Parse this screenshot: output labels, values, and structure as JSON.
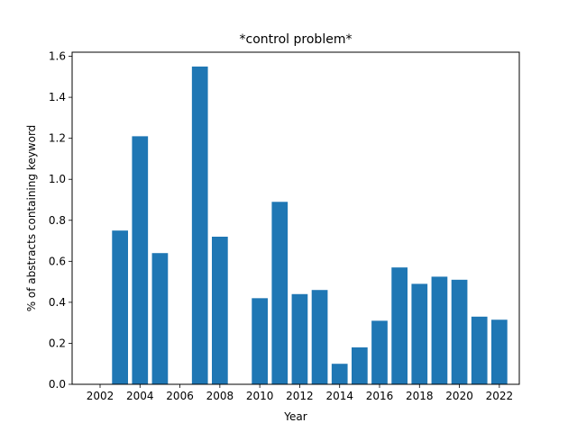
{
  "chart_data": {
    "type": "bar",
    "title": "*control problem*",
    "xlabel": "Year",
    "ylabel": "% of abstracts containing keyword",
    "x": [
      2003,
      2004,
      2005,
      2007,
      2008,
      2010,
      2011,
      2012,
      2013,
      2014,
      2015,
      2016,
      2017,
      2018,
      2019,
      2020,
      2021,
      2022
    ],
    "values": [
      0.75,
      1.21,
      0.64,
      1.55,
      0.72,
      0.42,
      0.89,
      0.44,
      0.46,
      0.1,
      0.18,
      0.31,
      0.57,
      0.49,
      0.525,
      0.51,
      0.33,
      0.315
    ],
    "xlim": [
      2000.6,
      2023.0
    ],
    "ylim": [
      0,
      1.62
    ],
    "xticks": [
      2002,
      2004,
      2006,
      2008,
      2010,
      2012,
      2014,
      2016,
      2018,
      2020,
      2022
    ],
    "xtick_labels": [
      "2002",
      "2004",
      "2006",
      "2008",
      "2010",
      "2012",
      "2014",
      "2016",
      "2018",
      "2020",
      "2022"
    ],
    "yticks": [
      0.0,
      0.2,
      0.4,
      0.6,
      0.8,
      1.0,
      1.2,
      1.4,
      1.6
    ],
    "ytick_labels": [
      "0.0",
      "0.2",
      "0.4",
      "0.6",
      "0.8",
      "1.0",
      "1.2",
      "1.4",
      "1.6"
    ],
    "bar_color": "#1f77b4",
    "grid": false,
    "legend": "none"
  }
}
